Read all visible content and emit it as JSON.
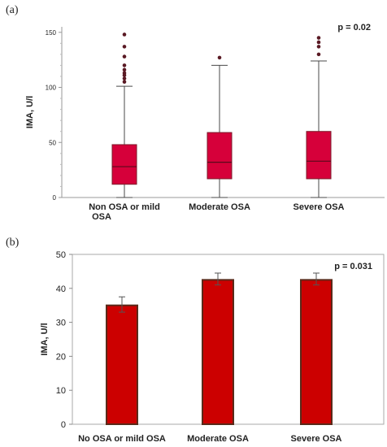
{
  "panels": {
    "a": {
      "label": "(a)"
    },
    "b": {
      "label": "(b)"
    }
  },
  "chart_data": [
    {
      "type": "boxplot",
      "panel": "(a)",
      "ylabel": "IMA, U/l",
      "ylim": [
        0,
        155
      ],
      "yticks": [
        0,
        50,
        100,
        150
      ],
      "annotation": "p = 0.02",
      "categories": [
        "Non OSA or mild OSA",
        "Moderate OSA",
        "Severe OSA"
      ],
      "boxes": [
        {
          "category": "Non OSA or mild OSA",
          "whisker_low": 0,
          "q1": 12,
          "median": 28,
          "q3": 48,
          "whisker_high": 101,
          "outliers": [
            105,
            108,
            111,
            113,
            116,
            120,
            128,
            137,
            148
          ]
        },
        {
          "category": "Moderate OSA",
          "whisker_low": 0,
          "q1": 17,
          "median": 32,
          "q3": 59,
          "whisker_high": 120,
          "outliers": [
            127
          ]
        },
        {
          "category": "Severe OSA",
          "whisker_low": 0,
          "q1": 17,
          "median": 33,
          "q3": 60,
          "whisker_high": 124,
          "outliers": [
            130,
            137,
            141,
            145
          ]
        }
      ],
      "colors": {
        "box": "#d6003a",
        "line": "#4a4a4a"
      }
    },
    {
      "type": "bar",
      "panel": "(b)",
      "ylabel": "IMA, U/l",
      "ylim": [
        0,
        50
      ],
      "yticks": [
        0,
        10,
        20,
        30,
        40,
        50
      ],
      "annotation": "p = 0.031",
      "categories": [
        "No OSA or mild OSA",
        "Moderate OSA",
        "Severe OSA"
      ],
      "values": [
        35,
        42.5,
        42.5
      ],
      "error_high": [
        37.5,
        44.5,
        44.5
      ],
      "error_low": [
        33,
        41,
        41
      ],
      "colors": {
        "bar": "#cc0000",
        "edge": "#5a2a1a"
      }
    }
  ]
}
